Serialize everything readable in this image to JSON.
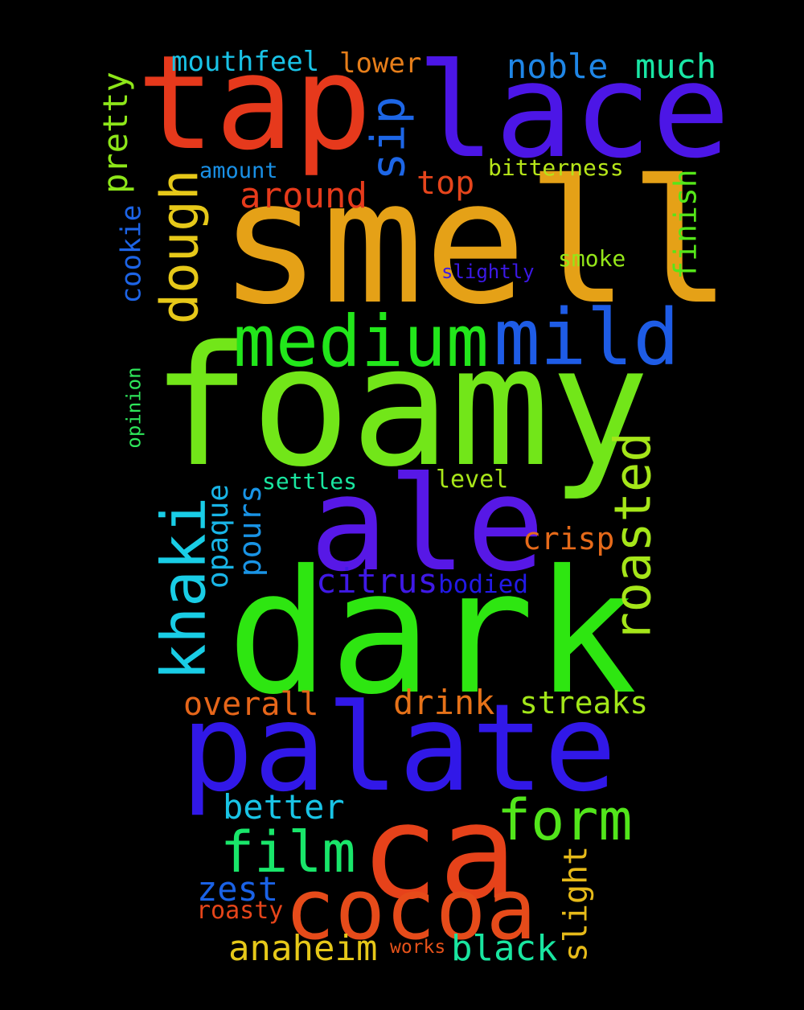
{
  "words": {
    "smell": {
      "text": "smell",
      "color": "#e5a117"
    },
    "foamy": {
      "text": "foamy",
      "color": "#72e619"
    },
    "dark": {
      "text": "dark",
      "color": "#2ee611"
    },
    "palate": {
      "text": "palate",
      "color": "#3118e8"
    },
    "lace": {
      "text": "lace",
      "color": "#4c16e6"
    },
    "tap": {
      "text": "tap",
      "color": "#e6391c"
    },
    "ale": {
      "text": "ale",
      "color": "#5718e6"
    },
    "ca": {
      "text": "ca",
      "color": "#e6421a"
    },
    "cocoa": {
      "text": "cocoa",
      "color": "#e64b1a"
    },
    "medium": {
      "text": "medium",
      "color": "#22e61b"
    },
    "mild": {
      "text": "mild",
      "color": "#1e5ce6"
    },
    "form": {
      "text": "form",
      "color": "#52e61b"
    },
    "film": {
      "text": "film",
      "color": "#19e66a"
    },
    "khaki": {
      "text": "khaki",
      "color": "#19cde6"
    },
    "roasted": {
      "text": "roasted",
      "color": "#a5e619"
    },
    "dough": {
      "text": "dough",
      "color": "#e6c819"
    },
    "sip": {
      "text": "sip",
      "color": "#1d66e6"
    },
    "noble": {
      "text": "noble",
      "color": "#1f86e6"
    },
    "much": {
      "text": "much",
      "color": "#19e6a5"
    },
    "mouthfeel": {
      "text": "mouthfeel",
      "color": "#19c2e6"
    },
    "lower": {
      "text": "lower",
      "color": "#e67e1a"
    },
    "pretty": {
      "text": "pretty",
      "color": "#8de619"
    },
    "around": {
      "text": "around",
      "color": "#e63a1b"
    },
    "top": {
      "text": "top",
      "color": "#e6451c"
    },
    "amount": {
      "text": "amount",
      "color": "#1990e6"
    },
    "bitterness": {
      "text": "bitterness",
      "color": "#b6e619"
    },
    "finish": {
      "text": "finish",
      "color": "#55e619"
    },
    "cookie": {
      "text": "cookie",
      "color": "#1d64e6"
    },
    "slightly": {
      "text": "slightly",
      "color": "#3c19e6"
    },
    "smoke": {
      "text": "smoke",
      "color": "#94e619"
    },
    "opinion": {
      "text": "opinion",
      "color": "#2ee65a"
    },
    "settles": {
      "text": "settles",
      "color": "#19e6a0"
    },
    "level": {
      "text": "level",
      "color": "#a8e619"
    },
    "opaque": {
      "text": "opaque",
      "color": "#19b4e6"
    },
    "pours": {
      "text": "pours",
      "color": "#1994e6"
    },
    "crisp": {
      "text": "crisp",
      "color": "#e66a1a"
    },
    "citrus": {
      "text": "citrus",
      "color": "#3f19e6"
    },
    "bodied": {
      "text": "bodied",
      "color": "#2219e6"
    },
    "overall": {
      "text": "overall",
      "color": "#e6661a"
    },
    "drink": {
      "text": "drink",
      "color": "#e67219"
    },
    "streaks": {
      "text": "streaks",
      "color": "#a2e619"
    },
    "better": {
      "text": "better",
      "color": "#19c4e6"
    },
    "zest": {
      "text": "zest",
      "color": "#1a62e6"
    },
    "roasty": {
      "text": "roasty",
      "color": "#e6451a"
    },
    "slight": {
      "text": "slight",
      "color": "#e6ba19"
    },
    "anaheim": {
      "text": "anaheim",
      "color": "#e6c819"
    },
    "works": {
      "text": "works",
      "color": "#e6521a"
    },
    "black": {
      "text": "black",
      "color": "#19e6a0"
    }
  }
}
